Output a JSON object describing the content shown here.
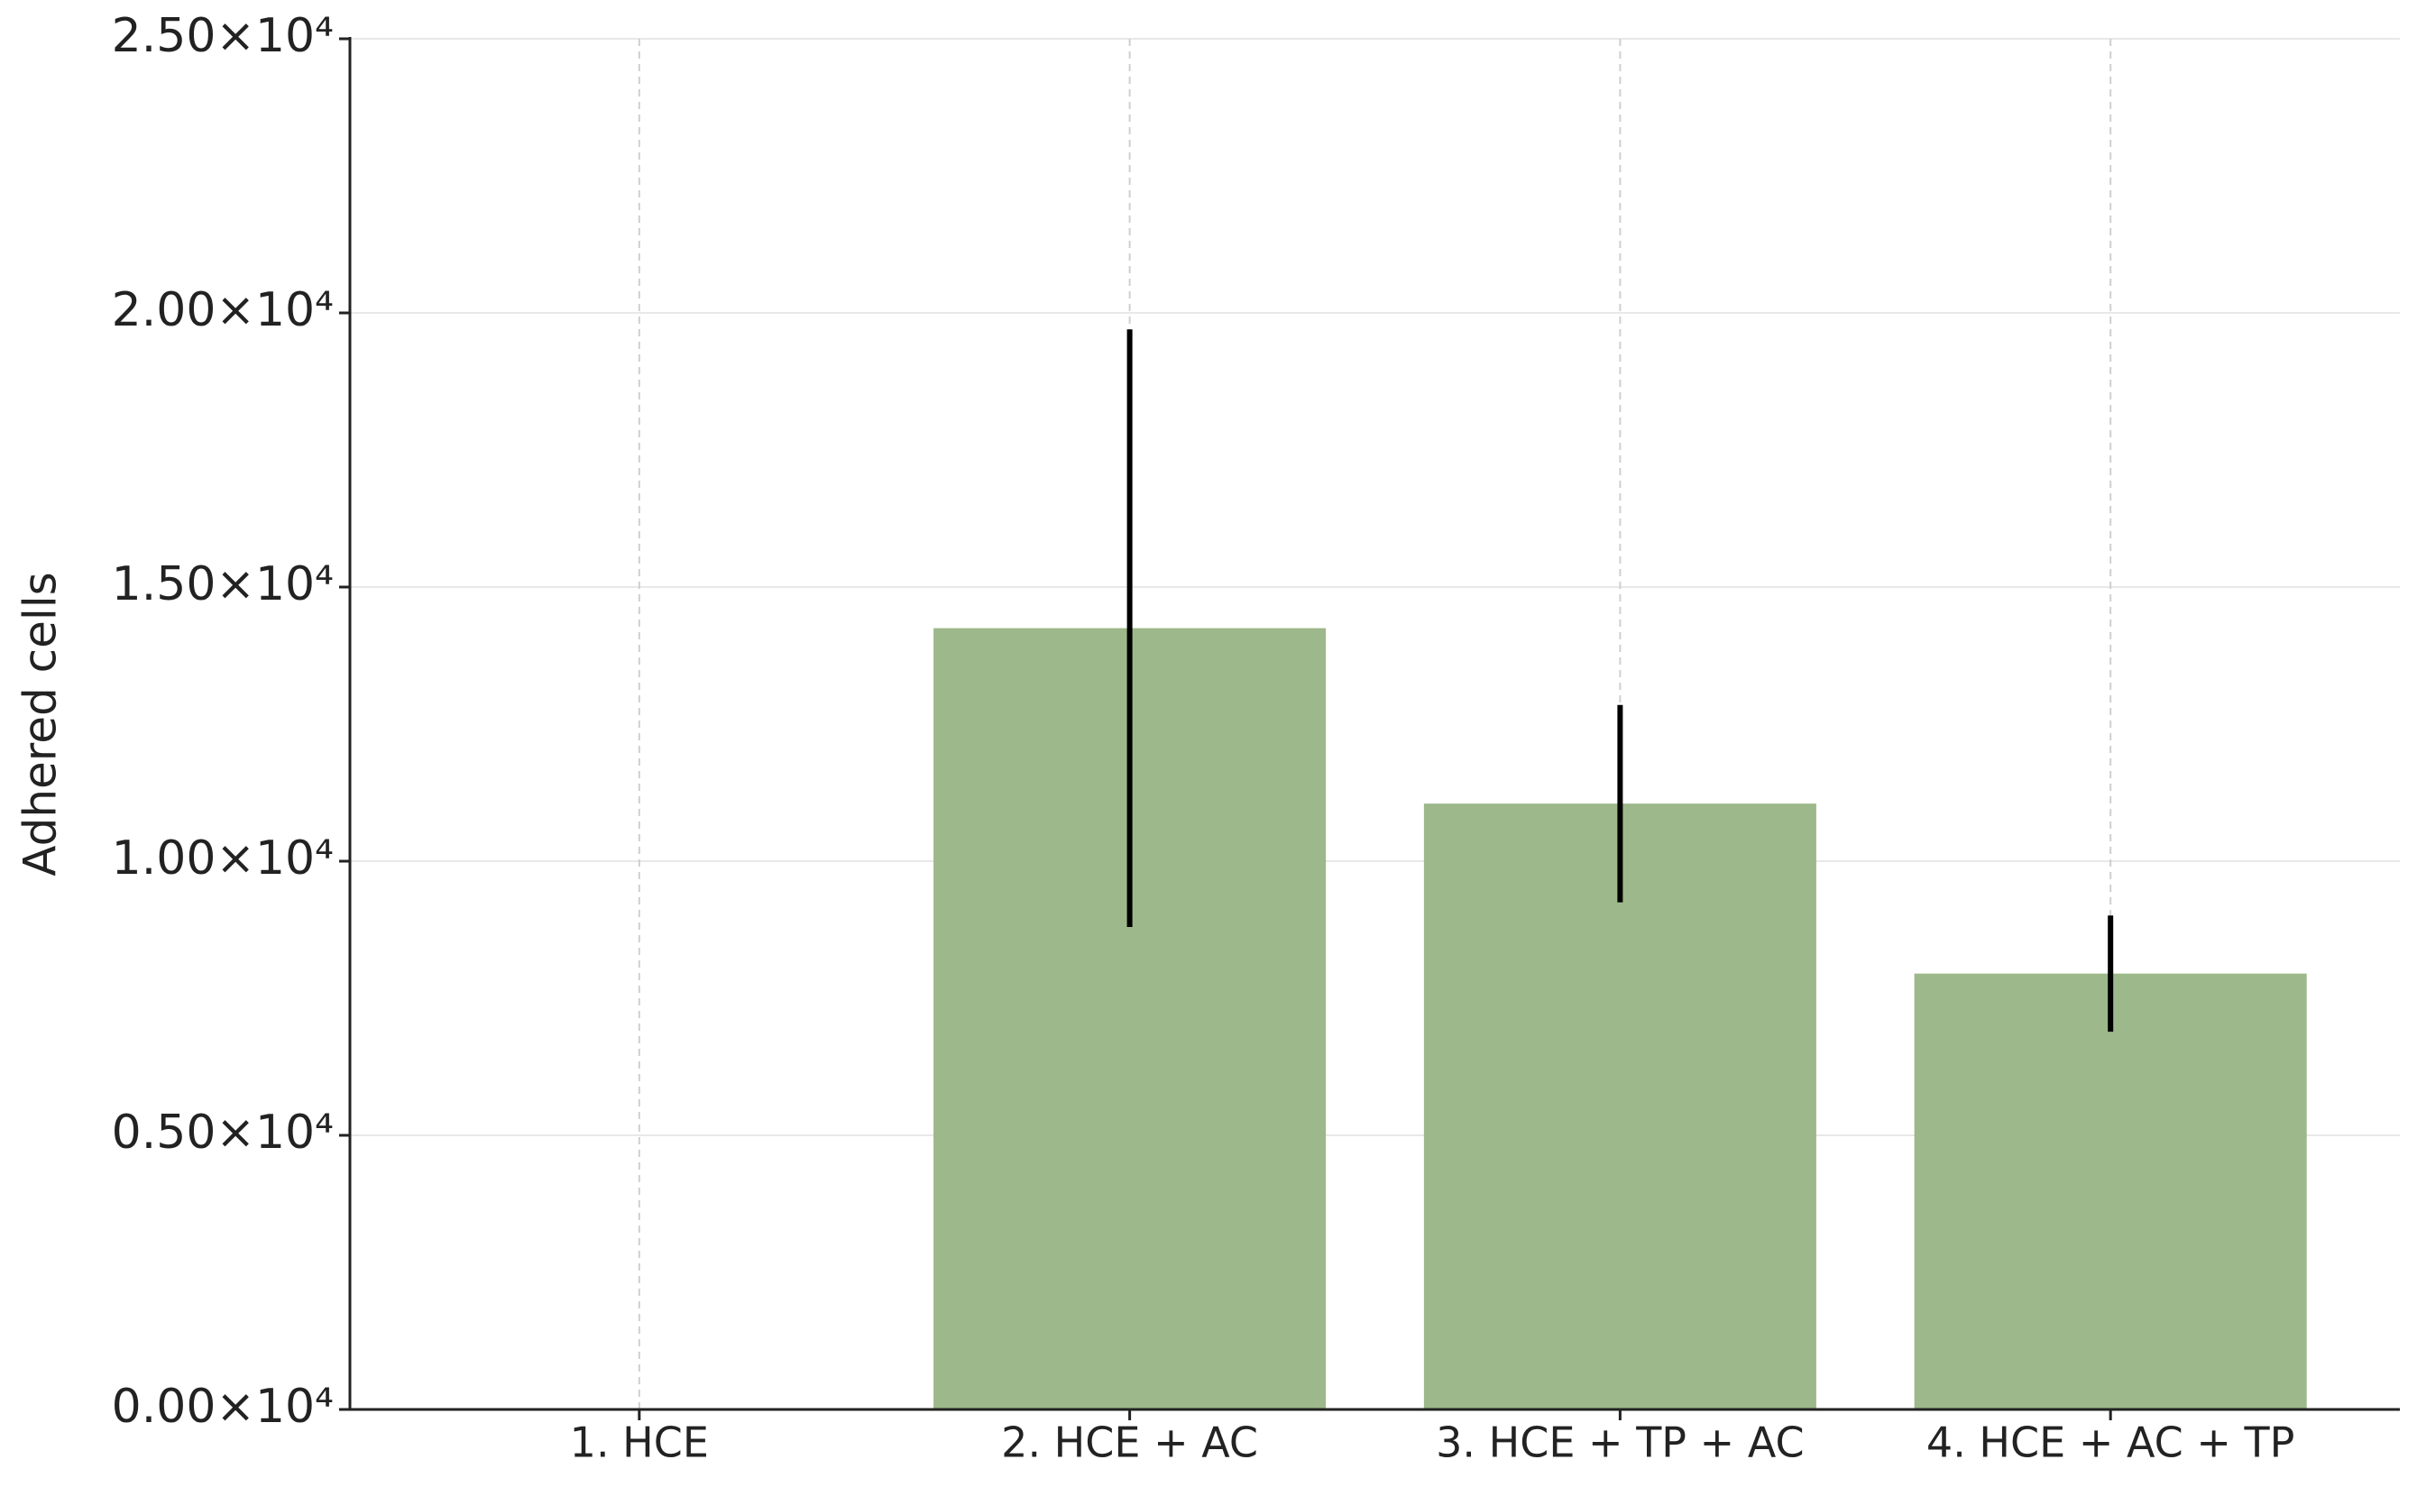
{
  "chart_data": {
    "type": "bar",
    "y_label": "Adhered cells",
    "categories": [
      "1. HCE",
      "2. HCE + AC",
      "3. HCE + TP + AC",
      "4. HCE + AC + TP"
    ],
    "values": [
      0,
      14250,
      11050,
      7950
    ],
    "errors": [
      0,
      5450,
      1800,
      1060
    ],
    "color": "#9db88a",
    "error_color": "#000000",
    "ylim": [
      0,
      25000
    ],
    "yticks": [
      {
        "value": 0,
        "label": "0.00×10⁴"
      },
      {
        "value": 5000,
        "label": "0.50×10⁴"
      },
      {
        "value": 10000,
        "label": "1.00×10⁴"
      },
      {
        "value": 15000,
        "label": "1.50×10⁴"
      },
      {
        "value": 20000,
        "label": "2.00×10⁴"
      },
      {
        "value": 25000,
        "label": "2.50×10⁴"
      }
    ],
    "grid": true
  }
}
